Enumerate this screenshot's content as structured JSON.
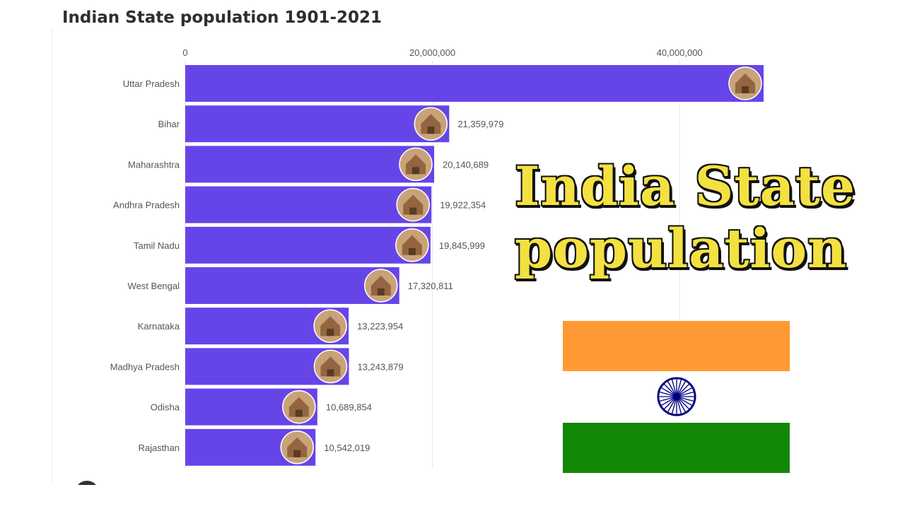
{
  "title": "Indian State population 1901-2021",
  "overlay": {
    "line1": "India State",
    "line2": "population"
  },
  "colors": {
    "bar": "#6645e8",
    "overlay_text": "#f3e141",
    "overlay_outline": "#111111",
    "flag_saffron": "#ff9933",
    "flag_white": "#ffffff",
    "flag_green": "#138808",
    "chakra": "#000080"
  },
  "chart_data": {
    "type": "bar",
    "orientation": "horizontal",
    "title": "Indian State population 1901-2021",
    "categories": [
      "Uttar Pradesh",
      "Bihar",
      "Maharashtra",
      "Andhra Pradesh",
      "Tamil Nadu",
      "West Bengal",
      "Karnataka",
      "Madhya Pradesh",
      "Odisha",
      "Rajasthan"
    ],
    "values": [
      46800000,
      21359979,
      20140689,
      19922354,
      19845999,
      17320811,
      13223954,
      13243879,
      10689854,
      10542019
    ],
    "value_labels": [
      "",
      "21,359,979",
      "20,140,689",
      "19,922,354",
      "19,845,999",
      "17,320,811",
      "13,223,954",
      "13,243,879",
      "10,689,854",
      "10,542,019"
    ],
    "xlim": [
      0,
      46800000
    ],
    "x_ticks": [
      0,
      20000000,
      40000000
    ],
    "x_tick_labels": [
      "0",
      "20,000,000",
      "40,000,000"
    ],
    "axis_position": "top",
    "grid": true,
    "bar_icons": [
      "taj-mahal-icon",
      "temple-icon",
      "gateway-of-india-icon",
      "buddha-statue-icon",
      "gopuram-temple-icon",
      "victoria-memorial-icon",
      "vidhana-soudha-icon",
      "khajuraho-temple-icon",
      "konark-temple-icon",
      "hawa-mahal-icon"
    ]
  }
}
